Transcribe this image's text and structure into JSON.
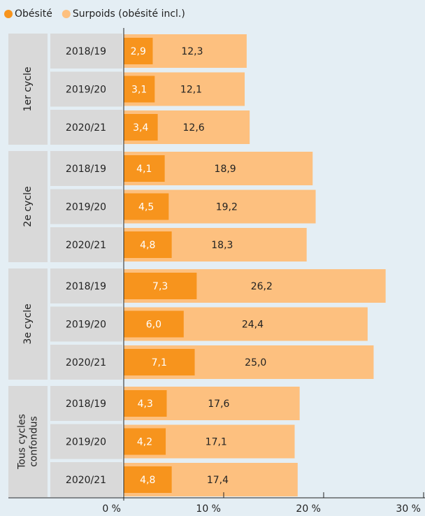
{
  "chart_data": {
    "type": "bar",
    "orientation": "horizontal",
    "overlap": true,
    "groups": [
      "1er cycle",
      "2e cycle",
      "3e cycle",
      "Tous cycles confondus"
    ],
    "categories": [
      "2018/19",
      "2019/20",
      "2020/21",
      "2018/19",
      "2019/20",
      "2020/21",
      "2018/19",
      "2019/20",
      "2020/21",
      "2018/19",
      "2019/20",
      "2020/21"
    ],
    "series": [
      {
        "name": "Obésité",
        "color": "#f7941d",
        "values": [
          2.9,
          3.1,
          3.4,
          4.1,
          4.5,
          4.8,
          7.3,
          6.0,
          7.1,
          4.3,
          4.2,
          4.8
        ],
        "value_labels": [
          "2,9",
          "3,1",
          "3,4",
          "4,1",
          "4,5",
          "4,8",
          "7,3",
          "6,0",
          "7,1",
          "4,3",
          "4,2",
          "4,8"
        ]
      },
      {
        "name": "Surpoids (obésité incl.)",
        "color": "#fdc07f",
        "values": [
          12.3,
          12.1,
          12.6,
          18.9,
          19.2,
          18.3,
          26.2,
          24.4,
          25.0,
          17.6,
          17.1,
          17.4
        ],
        "value_labels": [
          "12,3",
          "12,1",
          "12,6",
          "18,9",
          "19,2",
          "18,3",
          "26,2",
          "24,4",
          "25,0",
          "17,6",
          "17,1",
          "17,4"
        ]
      }
    ],
    "xlim": [
      0,
      30
    ],
    "xticks": [
      {
        "value": 0,
        "label": "0 %"
      },
      {
        "value": 10,
        "label": "10 %"
      },
      {
        "value": 20,
        "label": "20 %"
      },
      {
        "value": 30,
        "label": "30 %"
      }
    ],
    "legend": "top-left"
  }
}
